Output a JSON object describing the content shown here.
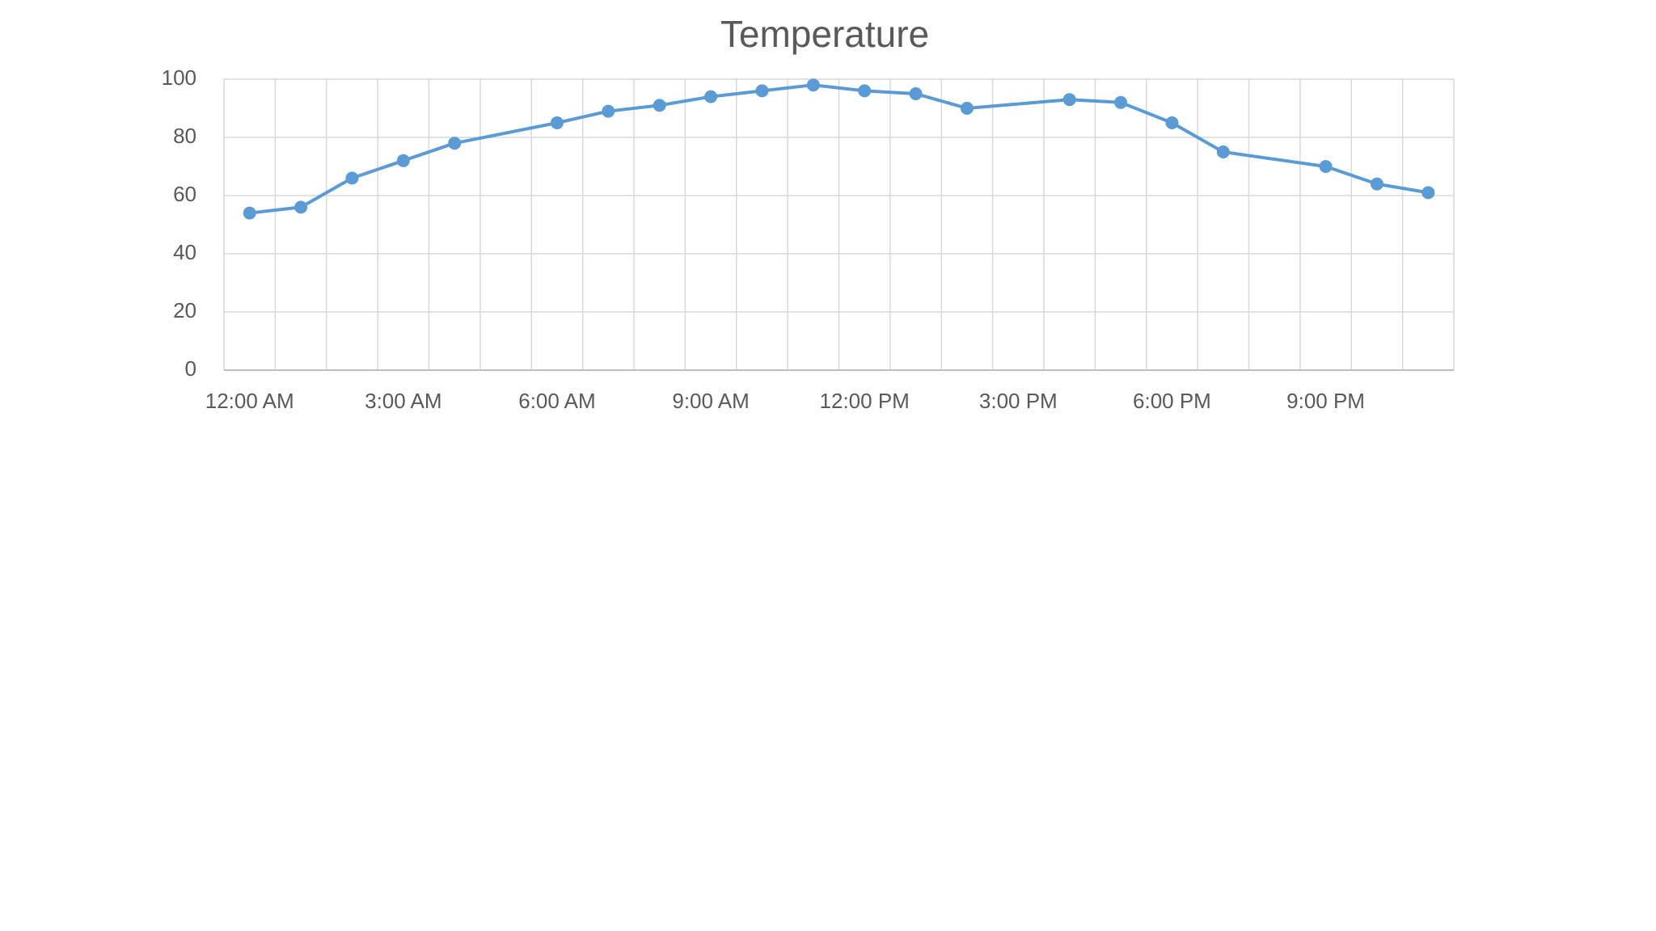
{
  "chart_data": {
    "type": "line",
    "title": "Temperature",
    "x": [
      0,
      1,
      2,
      3,
      4,
      6,
      7,
      8,
      9,
      10,
      11,
      12,
      13,
      14,
      16,
      17,
      18,
      19,
      21,
      22,
      23
    ],
    "series": [
      {
        "name": "Temperature",
        "color": "#5b9bd5",
        "values": [
          54,
          56,
          66,
          72,
          78,
          85,
          89,
          91,
          94,
          96,
          98,
          96,
          95,
          90,
          93,
          92,
          85,
          75,
          70,
          64,
          61
        ]
      }
    ],
    "xlim": [
      -0.5,
      23.5
    ],
    "xticks": [
      {
        "value": 0,
        "label": "12:00 AM"
      },
      {
        "value": 3,
        "label": "3:00 AM"
      },
      {
        "value": 6,
        "label": "6:00 AM"
      },
      {
        "value": 9,
        "label": "9:00 AM"
      },
      {
        "value": 12,
        "label": "12:00 PM"
      },
      {
        "value": 15,
        "label": "3:00 PM"
      },
      {
        "value": 18,
        "label": "6:00 PM"
      },
      {
        "value": 21,
        "label": "9:00 PM"
      }
    ],
    "ylim": [
      0,
      100
    ],
    "yticks": [
      0,
      20,
      40,
      60,
      80,
      100
    ],
    "grid": true
  }
}
